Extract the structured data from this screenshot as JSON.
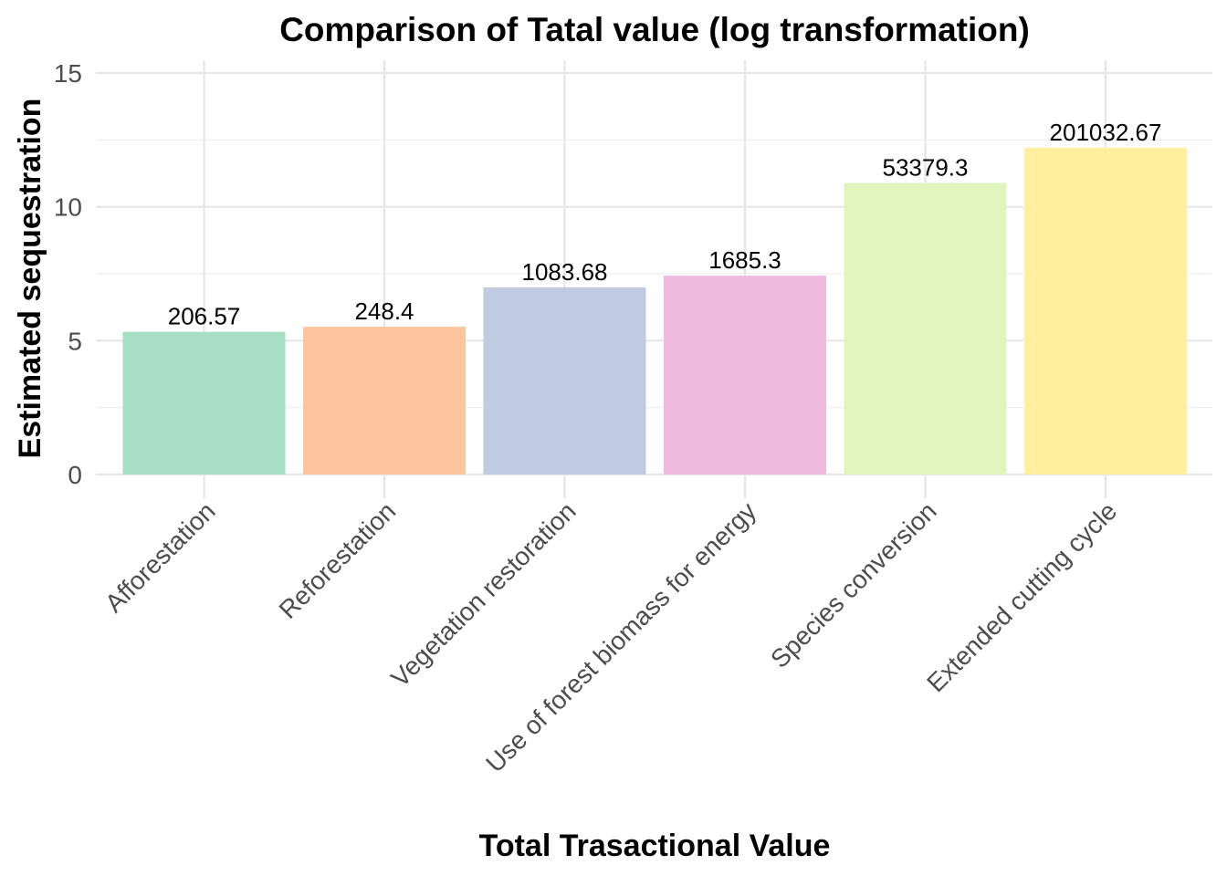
{
  "chart_data": {
    "type": "bar",
    "title": "Comparison of Tatal value (log transformation)",
    "xlabel": "Total Trasactional Value",
    "ylabel": "Estimated sequestration",
    "categories": [
      "Afforestation",
      "Reforestation",
      "Vegetation restoration",
      "Use of forest biomass for energy",
      "Species conversion",
      "Extended cutting cycle"
    ],
    "values": [
      5.33,
      5.52,
      6.99,
      7.43,
      10.89,
      12.21
    ],
    "data_labels": [
      "206.57",
      "248.4",
      "1083.68",
      "1685.3",
      "53379.3",
      "201032.67"
    ],
    "colors": [
      "#a6dfc3",
      "#fcc59e",
      "#c0cbe2",
      "#efbcdd",
      "#e0f5bb",
      "#ffef9f"
    ],
    "ylim": [
      0,
      15
    ],
    "yticks": [
      0,
      5,
      10,
      15
    ],
    "grid": true,
    "legend": "none"
  }
}
